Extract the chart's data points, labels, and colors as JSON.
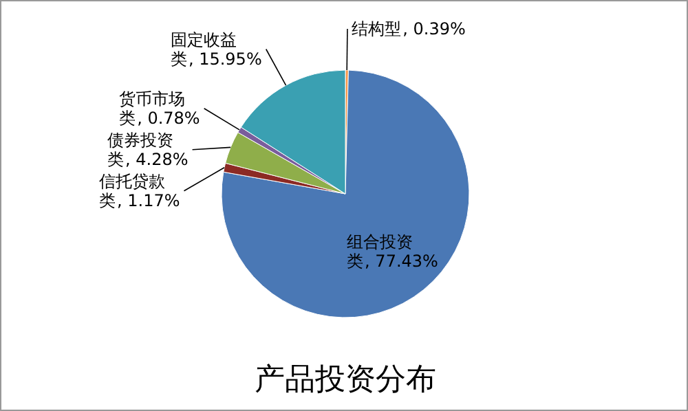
{
  "chart_data": {
    "type": "pie",
    "title": "产品投资分布",
    "categories": [
      "结构型",
      "组合投资类",
      "信托贷款类",
      "债券投资类",
      "货币市场类",
      "固定收益类"
    ],
    "values": [
      0.39,
      77.43,
      1.17,
      4.28,
      0.78,
      15.95
    ],
    "value_labels": [
      ", 0.39%",
      ", 77.43%",
      ", 1.17%",
      ", 4.28%",
      ", 0.78%",
      ", 15.95%"
    ],
    "colors": [
      "#f79646",
      "#4a78b5",
      "#8c2a24",
      "#8fae4a",
      "#7a5d9c",
      "#3aa0b2"
    ],
    "legend": false
  }
}
